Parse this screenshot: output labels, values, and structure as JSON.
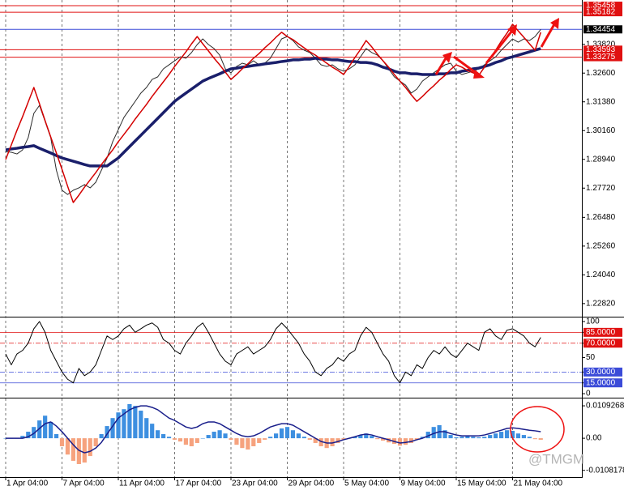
{
  "chart_data": [
    {
      "type": "line",
      "categories": [
        "1 Apr 04:00",
        null,
        null,
        null,
        null,
        null,
        null,
        null,
        null,
        null,
        "7 Apr 04:00",
        null,
        null,
        null,
        null,
        null,
        null,
        null,
        null,
        null,
        "11 Apr 04:00",
        null,
        null,
        null,
        null,
        null,
        null,
        null,
        null,
        null,
        "17 Apr 04:00",
        null,
        null,
        null,
        null,
        null,
        null,
        null,
        null,
        null,
        "23 Apr 04:00",
        null,
        null,
        null,
        null,
        null,
        null,
        null,
        null,
        null,
        "29 Apr 04:00",
        null,
        null,
        null,
        null,
        null,
        null,
        null,
        null,
        null,
        "5 May 04:00",
        null,
        null,
        null,
        null,
        null,
        null,
        null,
        null,
        null,
        "9 May 04:00",
        null,
        null,
        null,
        null,
        null,
        null,
        null,
        null,
        null,
        "15 May 04:00",
        null,
        null,
        null,
        null,
        null,
        null,
        null,
        null,
        null,
        "21 May 04:00",
        null,
        null,
        null,
        null,
        null
      ],
      "grid": true,
      "ylim": [
        1.223,
        1.357
      ],
      "yticks": [
        {
          "value": 1.3382,
          "label": "1.33820"
        },
        {
          "value": 1.326,
          "label": "1.32600"
        },
        {
          "value": 1.3138,
          "label": "1.31380"
        },
        {
          "value": 1.3016,
          "label": "1.30160"
        },
        {
          "value": 1.2894,
          "label": "1.28940"
        },
        {
          "value": 1.2772,
          "label": "1.27720"
        },
        {
          "value": 1.2648,
          "label": "1.26480"
        },
        {
          "value": 1.2526,
          "label": "1.25260"
        },
        {
          "value": 1.2404,
          "label": "1.24040"
        },
        {
          "value": 1.2282,
          "label": "1.22820"
        }
      ],
      "levels": [
        {
          "value": 1.35458,
          "color": "#e01010",
          "tag_color": "#e01010"
        },
        {
          "value": 1.35182,
          "color": "#e01010",
          "tag_color": "#e01010"
        },
        {
          "value": 1.34454,
          "color": "#3b4bd8",
          "tag_color": "#000000"
        },
        {
          "value": 1.33593,
          "color": "#e01010",
          "tag_color": "#e01010"
        },
        {
          "value": 1.33275,
          "color": "#e01010",
          "tag_color": "#e01010"
        }
      ],
      "series": [
        {
          "color": "#2b2b2b",
          "width": 1,
          "values": [
            1.2927,
            1.2924,
            1.2917,
            1.2934,
            1.2986,
            1.3089,
            1.3123,
            1.3055,
            1.2986,
            1.2848,
            1.2763,
            1.2745,
            1.2763,
            1.2773,
            1.2787,
            1.2773,
            1.2797,
            1.2848,
            1.29,
            1.2969,
            1.302,
            1.3072,
            1.3106,
            1.314,
            1.3175,
            1.3199,
            1.3233,
            1.3244,
            1.3278,
            1.3295,
            1.3312,
            1.3329,
            1.3323,
            1.3347,
            1.3381,
            1.3405,
            1.3381,
            1.3364,
            1.3336,
            1.3278,
            1.3261,
            1.3288,
            1.3302,
            1.3295,
            1.3312,
            1.3295,
            1.3302,
            1.3323,
            1.3364,
            1.3405,
            1.3415,
            1.3398,
            1.3371,
            1.3357,
            1.3347,
            1.3323,
            1.3295,
            1.3288,
            1.3295,
            1.3278,
            1.3268,
            1.3278,
            1.3295,
            1.3329,
            1.3364,
            1.3347,
            1.3336,
            1.3312,
            1.3278,
            1.3244,
            1.3226,
            1.3209,
            1.3175,
            1.3192,
            1.3226,
            1.3244,
            1.3261,
            1.3278,
            1.3295,
            1.3302,
            1.3268,
            1.3254,
            1.3261,
            1.3268,
            1.3278,
            1.3295,
            1.3312,
            1.3329,
            1.3357,
            1.3381,
            1.3405,
            1.3391,
            1.3405,
            1.3398,
            1.3415,
            1.34454
          ]
        },
        {
          "color": "#1a1f6b",
          "width": 3.5,
          "values": [
            1.2934,
            1.2938,
            1.2941,
            1.2945,
            1.2948,
            1.2952,
            1.2941,
            1.2931,
            1.2921,
            1.291,
            1.29,
            1.2893,
            1.2886,
            1.2879,
            1.2872,
            1.2866,
            1.2866,
            1.2866,
            1.2866,
            1.2883,
            1.29,
            1.2924,
            1.2948,
            1.2972,
            1.2996,
            1.302,
            1.3044,
            1.3068,
            1.3092,
            1.3116,
            1.314,
            1.3158,
            1.3175,
            1.3192,
            1.3209,
            1.3226,
            1.3237,
            1.3247,
            1.3257,
            1.3268,
            1.3278,
            1.3281,
            1.3285,
            1.3288,
            1.3292,
            1.3295,
            1.3299,
            1.3302,
            1.3305,
            1.3309,
            1.3312,
            1.3316,
            1.3316,
            1.3319,
            1.3319,
            1.3323,
            1.3319,
            1.3319,
            1.3316,
            1.3316,
            1.3312,
            1.3309,
            1.3309,
            1.3305,
            1.3305,
            1.3302,
            1.3295,
            1.3285,
            1.3278,
            1.3268,
            1.3261,
            1.3261,
            1.3257,
            1.3257,
            1.3254,
            1.3254,
            1.3254,
            1.3257,
            1.3257,
            1.3261,
            1.3261,
            1.3268,
            1.3271,
            1.3278,
            1.3281,
            1.3288,
            1.3295,
            1.3305,
            1.3312,
            1.3323,
            1.3329,
            1.3336,
            1.3343,
            1.335,
            1.3357,
            1.3364
          ]
        },
        {
          "color": "#d40000",
          "width": 1.5,
          "values": [
            1.2893,
            1.2955,
            1.3017,
            1.3075,
            1.3137,
            1.3199,
            1.313,
            1.3058,
            1.2989,
            1.2921,
            1.2852,
            1.278,
            1.2711,
            1.2742,
            1.2776,
            1.2807,
            1.2838,
            1.2872,
            1.2903,
            1.2934,
            1.2969,
            1.3,
            1.3031,
            1.3065,
            1.3096,
            1.3127,
            1.3161,
            1.3192,
            1.3223,
            1.3254,
            1.3288,
            1.3319,
            1.335,
            1.3384,
            1.3415,
            1.3384,
            1.3354,
            1.3323,
            1.3295,
            1.3264,
            1.3233,
            1.3254,
            1.3278,
            1.3299,
            1.3323,
            1.3343,
            1.3367,
            1.3388,
            1.3412,
            1.3433,
            1.3415,
            1.3402,
            1.3384,
            1.3367,
            1.335,
            1.3336,
            1.3319,
            1.3302,
            1.3285,
            1.3271,
            1.3254,
            1.3288,
            1.3326,
            1.336,
            1.3398,
            1.3371,
            1.334,
            1.3312,
            1.3285,
            1.3254,
            1.3226,
            1.3199,
            1.3168,
            1.314,
            1.3161,
            1.3185,
            1.3206,
            1.323,
            1.325,
            1.3275,
            1.3295,
            1.3285,
            1.3271,
            1.3261,
            1.325,
            1.3285,
            1.3323,
            1.3357,
            1.3395,
            1.3429,
            1.3467,
            1.3439,
            1.3412,
            1.3384,
            1.3357,
            1.3433
          ]
        }
      ]
    },
    {
      "type": "line",
      "ylim": [
        -4.4,
        105.6
      ],
      "yticks": [
        100,
        {
          "value": 85,
          "label": "85.0000",
          "color": "#e01010"
        },
        {
          "value": 70,
          "label": "70.0000",
          "color": "#e01010",
          "dashed": true
        },
        50,
        {
          "value": 30,
          "label": "30.0000",
          "color": "#3b4bd8",
          "dashed": true
        },
        {
          "value": 15,
          "label": "15.0000",
          "color": "#3b4bd8"
        },
        0
      ],
      "series": [
        {
          "color": "#000000",
          "width": 1,
          "values": [
            55,
            40,
            55,
            60,
            70,
            90,
            100,
            85,
            60,
            45,
            30,
            20,
            15,
            35,
            25,
            30,
            40,
            60,
            80,
            75,
            80,
            90,
            95,
            85,
            90,
            95,
            98,
            92,
            75,
            70,
            60,
            55,
            70,
            80,
            92,
            98,
            85,
            70,
            55,
            45,
            40,
            55,
            60,
            65,
            55,
            60,
            65,
            75,
            90,
            98,
            90,
            80,
            70,
            55,
            45,
            30,
            25,
            35,
            40,
            50,
            45,
            55,
            60,
            80,
            92,
            85,
            70,
            55,
            45,
            25,
            15,
            30,
            25,
            40,
            35,
            50,
            60,
            55,
            65,
            55,
            50,
            60,
            70,
            65,
            60,
            85,
            90,
            80,
            75,
            88,
            90,
            85,
            80,
            70,
            65,
            78
          ]
        }
      ]
    },
    {
      "type": "bar",
      "ylim": [
        -0.0128,
        0.0134
      ],
      "yticks": [
        0.0109268,
        {
          "value": 0,
          "label": "0.00"
        },
        -0.0108178
      ],
      "series": [
        {
          "type": "bar",
          "color": "#3d8fe0",
          "negative_color": "#f6a27e",
          "values": [
            0,
            0,
            0,
            0.0008,
            0.0022,
            0.0038,
            0.006,
            0.0076,
            0.0055,
            0.0014,
            -0.0027,
            -0.0055,
            -0.0076,
            -0.0087,
            -0.0082,
            -0.006,
            -0.0027,
            0.0014,
            0.0041,
            0.0068,
            0.0087,
            0.0098,
            0.0115,
            0.0109,
            0.0093,
            0.0068,
            0.0049,
            0.0027,
            0.0014,
            0.0005,
            -0.0005,
            -0.0011,
            -0.0022,
            -0.0027,
            -0.0016,
            0,
            0.0011,
            0.0022,
            0.0027,
            0.0016,
            -0.0005,
            -0.0022,
            -0.0033,
            -0.0038,
            -0.0027,
            -0.0016,
            -0.0005,
            0.0005,
            0.0016,
            0.0033,
            0.0038,
            0.0027,
            0.0016,
            0.0005,
            -0.0005,
            -0.0016,
            -0.0027,
            -0.0033,
            -0.0027,
            -0.0016,
            -0.0005,
            0,
            0.0005,
            0.0011,
            0.0016,
            0.0008,
            -0.0003,
            -0.0008,
            -0.0014,
            -0.0019,
            -0.0025,
            -0.0022,
            -0.0016,
            -0.0005,
            0.0005,
            0.0022,
            0.0038,
            0.0044,
            0.0027,
            0.0011,
            0.0003,
            0.0005,
            0.0008,
            0.0005,
            0.0003,
            0.0005,
            0.0011,
            0.0016,
            0.0022,
            0.0027,
            0.0025,
            0.0016,
            0.0011,
            0.0005,
            -0.0003,
            -0.0005
          ]
        },
        {
          "type": "line",
          "color": "#1a1f8b",
          "width": 1.5,
          "values": [
            0,
            0,
            0,
            0,
            0.0005,
            0.0016,
            0.0033,
            0.0049,
            0.0055,
            0.0041,
            0.0022,
            0,
            -0.0022,
            -0.0041,
            -0.0049,
            -0.0044,
            -0.0033,
            -0.0014,
            0.0014,
            0.0041,
            0.0068,
            0.0082,
            0.0096,
            0.0104,
            0.0109,
            0.0109,
            0.0104,
            0.0096,
            0.0082,
            0.0068,
            0.006,
            0.0049,
            0.0038,
            0.0033,
            0.0038,
            0.0049,
            0.0055,
            0.0055,
            0.0049,
            0.0038,
            0.0027,
            0.0016,
            0.0008,
            0.0005,
            0.0008,
            0.0016,
            0.0027,
            0.0038,
            0.0044,
            0.0049,
            0.0049,
            0.0044,
            0.0033,
            0.0022,
            0.0011,
            0,
            -0.0011,
            -0.0016,
            -0.0016,
            -0.0011,
            -0.0005,
            0,
            0.0005,
            0.0011,
            0.0014,
            0.0011,
            0.0005,
            0,
            -0.0005,
            -0.0011,
            -0.0016,
            -0.0014,
            -0.0011,
            -0.0005,
            0,
            0.0008,
            0.0016,
            0.0022,
            0.0022,
            0.0016,
            0.0011,
            0.0008,
            0.0008,
            0.0008,
            0.0008,
            0.0011,
            0.0016,
            0.0022,
            0.0027,
            0.0033,
            0.0035,
            0.0033,
            0.003,
            0.0027,
            0.0025,
            0.0022
          ]
        }
      ]
    }
  ],
  "watermark": "@TMGM"
}
